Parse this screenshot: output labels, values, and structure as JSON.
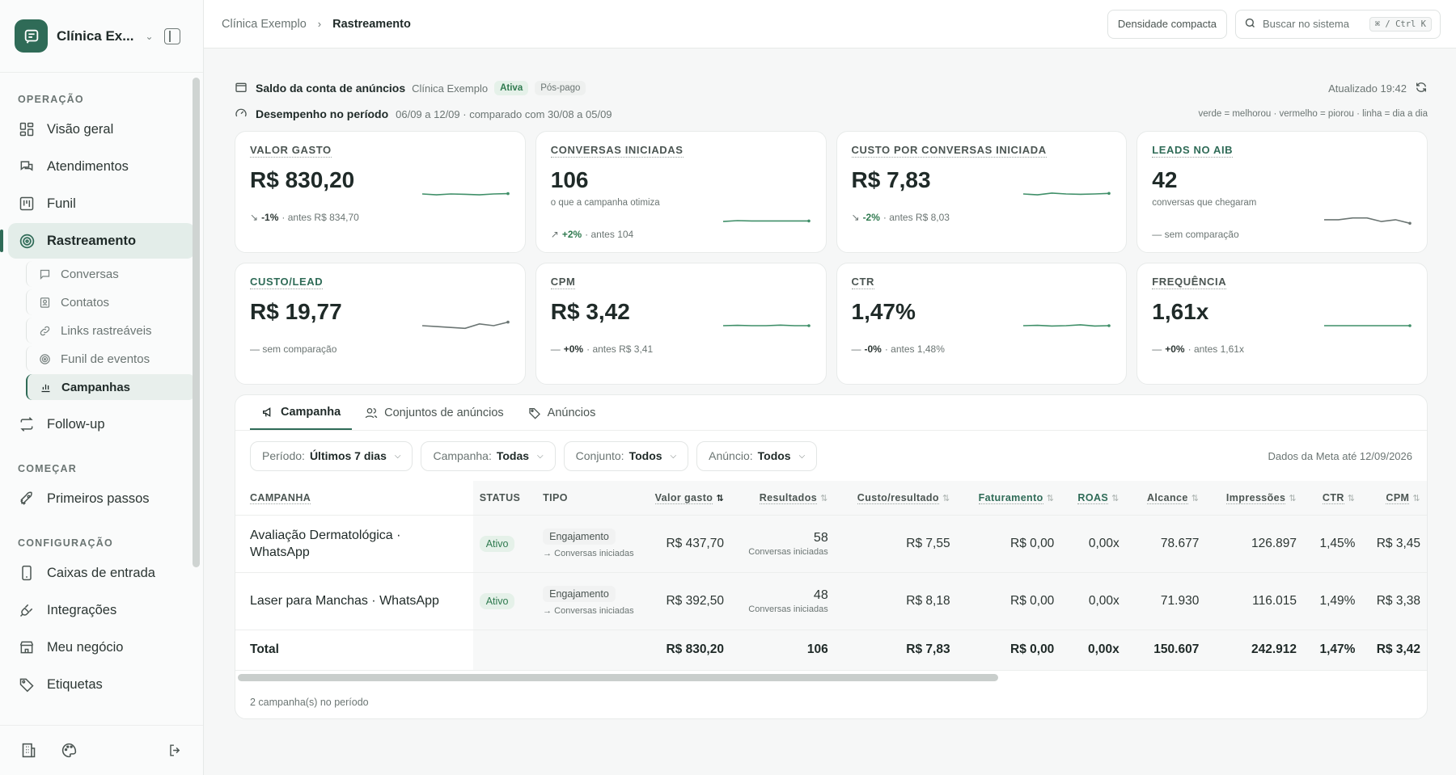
{
  "sidebar": {
    "org": "Clínica Ex...",
    "sections": {
      "operacao": "OPERAÇÃO",
      "comecar": "COMEÇAR",
      "configuracao": "CONFIGURAÇÃO"
    },
    "items": {
      "visao_geral": "Visão geral",
      "atendimentos": "Atendimentos",
      "funil": "Funil",
      "rastreamento": "Rastreamento",
      "follow_up": "Follow-up",
      "primeiros_passos": "Primeiros passos",
      "caixas": "Caixas de entrada",
      "integracoes": "Integrações",
      "meu_negocio": "Meu negócio",
      "etiquetas": "Etiquetas"
    },
    "sub_items": {
      "conversas": "Conversas",
      "contatos": "Contatos",
      "links": "Links rastreáveis",
      "funil_eventos": "Funil de eventos",
      "campanhas": "Campanhas"
    }
  },
  "topbar": {
    "breadcrumb_root": "Clínica Exemplo",
    "breadcrumb_current": "Rastreamento",
    "density_label": "Densidade compacta",
    "search_placeholder": "Buscar no sistema",
    "search_shortcut": "⌘ / Ctrl K"
  },
  "balance": {
    "title": "Saldo da conta de anúncios",
    "clinic": "Clínica Exemplo",
    "status": "Ativa",
    "billing": "Pós-pago",
    "updated": "Atualizado 19:42"
  },
  "performance": {
    "title": "Desempenho no período",
    "range": "06/09 a 12/09 · comparado com 30/08 a 05/09",
    "legend": "verde = melhorou · vermelho = piorou · linha = dia a dia"
  },
  "kpis": [
    {
      "label": "VALOR GASTO",
      "value": "R$ 830,20",
      "note": "",
      "delta": "-1%",
      "prev": "· antes R$ 834,70",
      "trend": "down",
      "spark": [
        0.5,
        0.55,
        0.5,
        0.52,
        0.55,
        0.5,
        0.48
      ]
    },
    {
      "label": "CONVERSAS INICIADAS",
      "value": "106",
      "note": "o que a campanha otimiza",
      "delta": "+2%",
      "prev": "· antes 104",
      "trend": "up",
      "spark": [
        0.55,
        0.5,
        0.52,
        0.52,
        0.52,
        0.52,
        0.52
      ]
    },
    {
      "label": "CUSTO POR CONVERSAS INICIADA",
      "value": "R$ 7,83",
      "note": "",
      "delta": "-2%",
      "prev": "· antes R$ 8,03",
      "trend": "down",
      "spark": [
        0.5,
        0.55,
        0.45,
        0.5,
        0.52,
        0.5,
        0.47
      ]
    },
    {
      "label": "LEADS NO AIB",
      "value": "42",
      "note": "conversas que chegaram",
      "delta": "",
      "prev": "sem comparação",
      "trend": "none",
      "spark": [
        0.45,
        0.45,
        0.35,
        0.35,
        0.55,
        0.45,
        0.65
      ]
    },
    {
      "label": "CUSTO/LEAD",
      "value": "R$ 19,77",
      "note": "",
      "delta": "",
      "prev": "sem comparação",
      "trend": "none",
      "spark": [
        0.5,
        0.55,
        0.6,
        0.65,
        0.4,
        0.5,
        0.3
      ]
    },
    {
      "label": "CPM",
      "value": "R$ 3,42",
      "note": "",
      "delta": "+0%",
      "prev": "· antes R$ 3,41",
      "trend": "flat",
      "spark": [
        0.5,
        0.48,
        0.5,
        0.5,
        0.47,
        0.5,
        0.5
      ]
    },
    {
      "label": "CTR",
      "value": "1,47%",
      "note": "",
      "delta": "-0%",
      "prev": "· antes 1,48%",
      "trend": "flat",
      "spark": [
        0.5,
        0.48,
        0.52,
        0.5,
        0.45,
        0.52,
        0.5
      ]
    },
    {
      "label": "FREQUÊNCIA",
      "value": "1,61x",
      "note": "",
      "delta": "+0%",
      "prev": "· antes 1,61x",
      "trend": "flat",
      "spark": [
        0.5,
        0.5,
        0.5,
        0.5,
        0.5,
        0.5,
        0.5
      ]
    }
  ],
  "tabs": [
    "Campanha",
    "Conjuntos de anúncios",
    "Anúncios"
  ],
  "filters": {
    "periodo_label": "Período:",
    "periodo_value": "Últimos 7 dias",
    "campanha_label": "Campanha:",
    "campanha_value": "Todas",
    "conjunto_label": "Conjunto:",
    "conjunto_value": "Todos",
    "anuncio_label": "Anúncio:",
    "anuncio_value": "Todos",
    "meta_date": "Dados da Meta até 12/09/2026"
  },
  "table": {
    "headers": {
      "campanha": "CAMPANHA",
      "status": "STATUS",
      "tipo": "TIPO",
      "valor_gasto": "Valor gasto",
      "resultados": "Resultados",
      "custo_resultado": "Custo/resultado",
      "faturamento": "Faturamento",
      "roas": "ROAS",
      "alcance": "Alcance",
      "impressoes": "Impressões",
      "ctr": "CTR",
      "cpm": "CPM"
    },
    "rows": [
      {
        "campanha": "Avaliação Dermatológica · WhatsApp",
        "status": "Ativo",
        "tipo": "Engajamento",
        "tipo_sub": "→ Conversas iniciadas",
        "valor_gasto": "R$ 437,70",
        "resultados": "58",
        "resultados_sub": "Conversas iniciadas",
        "custo_resultado": "R$ 7,55",
        "faturamento": "R$ 0,00",
        "roas": "0,00x",
        "alcance": "78.677",
        "impressoes": "126.897",
        "ctr": "1,45%",
        "cpm": "R$ 3,45"
      },
      {
        "campanha": "Laser para Manchas · WhatsApp",
        "status": "Ativo",
        "tipo": "Engajamento",
        "tipo_sub": "→ Conversas iniciadas",
        "valor_gasto": "R$ 392,50",
        "resultados": "48",
        "resultados_sub": "Conversas iniciadas",
        "custo_resultado": "R$ 8,18",
        "faturamento": "R$ 0,00",
        "roas": "0,00x",
        "alcance": "71.930",
        "impressoes": "116.015",
        "ctr": "1,49%",
        "cpm": "R$ 3,38"
      }
    ],
    "total": {
      "label": "Total",
      "valor_gasto": "R$ 830,20",
      "resultados": "106",
      "custo_resultado": "R$ 7,83",
      "faturamento": "R$ 0,00",
      "roas": "0,00x",
      "alcance": "150.607",
      "impressoes": "242.912",
      "ctr": "1,47%",
      "cpm": "R$ 3,42"
    }
  },
  "footer_count": "2 campanha(s) no período",
  "colors": {
    "brand": "#2f6b57",
    "positive": "#2f7a4f",
    "spark": "#3f8f68"
  }
}
